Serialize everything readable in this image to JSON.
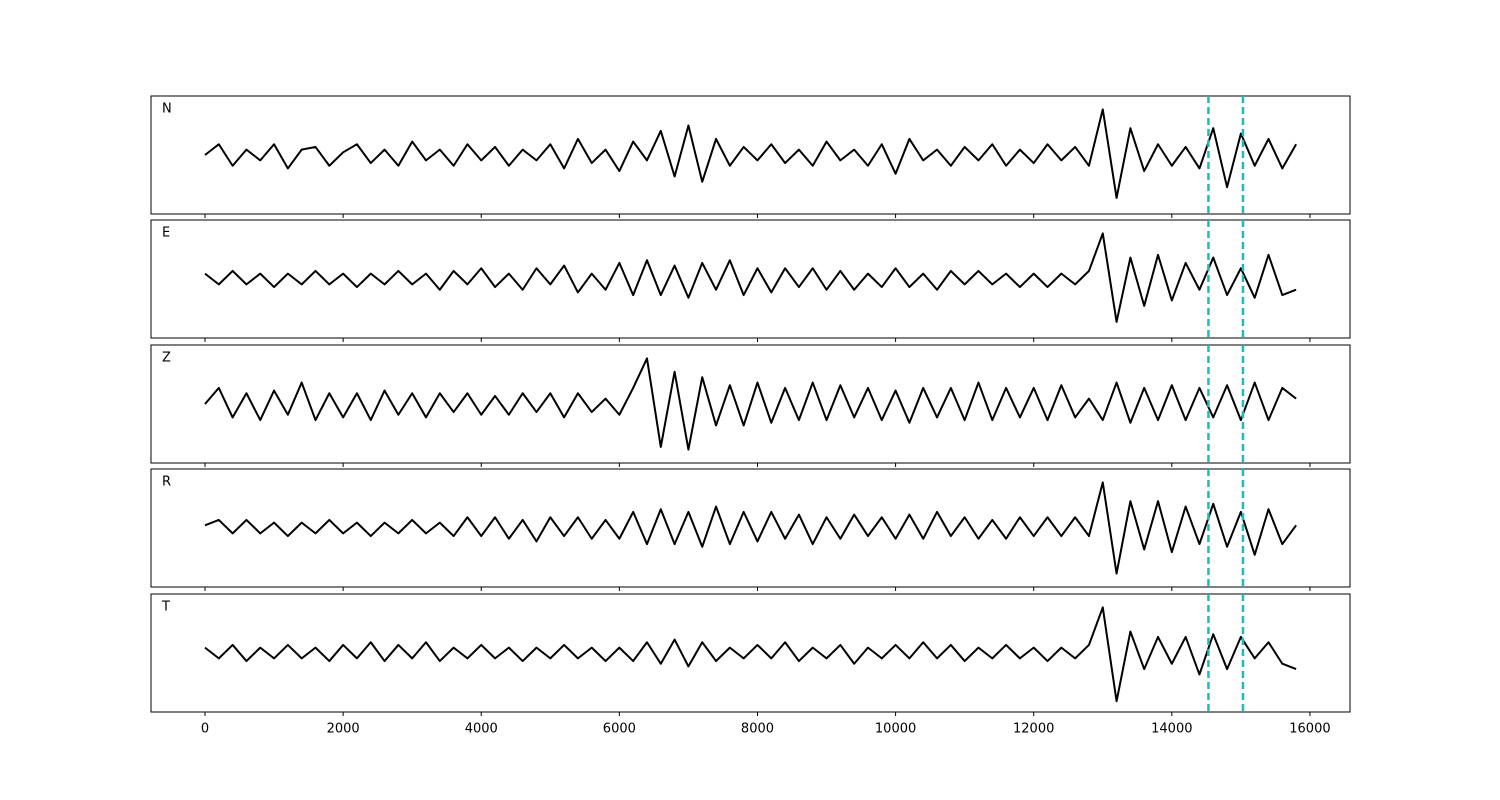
{
  "chart_data": {
    "type": "line",
    "x": [
      0,
      200,
      400,
      600,
      800,
      1000,
      1200,
      1400,
      1600,
      1800,
      2000,
      2200,
      2400,
      2600,
      2800,
      3000,
      3200,
      3400,
      3600,
      3800,
      4000,
      4200,
      4400,
      4600,
      4800,
      5000,
      5200,
      5400,
      5600,
      5800,
      6000,
      6200,
      6400,
      6600,
      6800,
      7000,
      7200,
      7400,
      7600,
      7800,
      8000,
      8200,
      8400,
      8600,
      8800,
      9000,
      9200,
      9400,
      9600,
      9800,
      10000,
      10200,
      10400,
      10600,
      10800,
      11000,
      11200,
      11400,
      11600,
      11800,
      12000,
      12200,
      12400,
      12600,
      12800,
      13000,
      13200,
      13400,
      13600,
      13800,
      14000,
      14200,
      14400,
      14600,
      14800,
      15000,
      15200,
      15400,
      15600,
      15800
    ],
    "series": [
      {
        "name": "N",
        "color": "#000000",
        "values": [
          0.0,
          0.2,
          -0.2,
          0.1,
          -0.1,
          0.2,
          -0.25,
          0.1,
          0.15,
          -0.2,
          0.05,
          0.2,
          -0.15,
          0.1,
          -0.2,
          0.25,
          -0.1,
          0.1,
          -0.2,
          0.2,
          -0.1,
          0.15,
          -0.2,
          0.1,
          -0.1,
          0.2,
          -0.25,
          0.3,
          -0.15,
          0.1,
          -0.3,
          0.25,
          -0.1,
          0.45,
          -0.4,
          0.55,
          -0.5,
          0.3,
          -0.2,
          0.15,
          -0.1,
          0.2,
          -0.15,
          0.1,
          -0.2,
          0.25,
          -0.1,
          0.1,
          -0.2,
          0.2,
          -0.35,
          0.3,
          -0.1,
          0.1,
          -0.2,
          0.15,
          -0.1,
          0.2,
          -0.2,
          0.1,
          -0.15,
          0.2,
          -0.1,
          0.15,
          -0.2,
          0.85,
          -0.8,
          0.5,
          -0.3,
          0.2,
          -0.2,
          0.15,
          -0.25,
          0.5,
          -0.6,
          0.4,
          -0.2,
          0.3,
          -0.25,
          0.2
        ]
      },
      {
        "name": "E",
        "color": "#000000",
        "values": [
          0.1,
          -0.1,
          0.15,
          -0.1,
          0.1,
          -0.15,
          0.1,
          -0.1,
          0.15,
          -0.1,
          0.1,
          -0.15,
          0.1,
          -0.1,
          0.15,
          -0.1,
          0.1,
          -0.2,
          0.15,
          -0.1,
          0.2,
          -0.15,
          0.1,
          -0.2,
          0.2,
          -0.1,
          0.25,
          -0.25,
          0.1,
          -0.2,
          0.3,
          -0.3,
          0.35,
          -0.3,
          0.25,
          -0.35,
          0.3,
          -0.2,
          0.35,
          -0.3,
          0.2,
          -0.25,
          0.2,
          -0.15,
          0.2,
          -0.2,
          0.15,
          -0.2,
          0.1,
          -0.15,
          0.2,
          -0.15,
          0.1,
          -0.2,
          0.15,
          -0.1,
          0.15,
          -0.1,
          0.1,
          -0.15,
          0.1,
          -0.15,
          0.1,
          -0.1,
          0.15,
          0.85,
          -0.8,
          0.4,
          -0.5,
          0.45,
          -0.4,
          0.3,
          -0.2,
          0.4,
          -0.3,
          0.2,
          -0.35,
          0.45,
          -0.3,
          -0.2
        ]
      },
      {
        "name": "Z",
        "color": "#000000",
        "values": [
          0.0,
          0.3,
          -0.25,
          0.2,
          -0.3,
          0.25,
          -0.2,
          0.4,
          -0.3,
          0.2,
          -0.25,
          0.2,
          -0.3,
          0.25,
          -0.2,
          0.2,
          -0.25,
          0.2,
          -0.15,
          0.2,
          -0.2,
          0.15,
          -0.2,
          0.2,
          -0.15,
          0.2,
          -0.25,
          0.2,
          -0.15,
          0.1,
          -0.2,
          0.3,
          0.85,
          -0.8,
          0.6,
          -0.85,
          0.5,
          -0.4,
          0.35,
          -0.4,
          0.4,
          -0.35,
          0.3,
          -0.3,
          0.4,
          -0.3,
          0.35,
          -0.25,
          0.3,
          -0.3,
          0.25,
          -0.35,
          0.3,
          -0.25,
          0.3,
          -0.3,
          0.4,
          -0.3,
          0.3,
          -0.25,
          0.3,
          -0.3,
          0.35,
          -0.25,
          0.1,
          -0.3,
          0.4,
          -0.35,
          0.3,
          -0.3,
          0.35,
          -0.3,
          0.3,
          -0.25,
          0.35,
          -0.3,
          0.4,
          -0.3,
          0.3,
          0.1
        ]
      },
      {
        "name": "R",
        "color": "#000000",
        "values": [
          0.05,
          0.15,
          -0.1,
          0.15,
          -0.1,
          0.1,
          -0.15,
          0.1,
          -0.1,
          0.15,
          -0.1,
          0.1,
          -0.15,
          0.1,
          -0.1,
          0.15,
          -0.1,
          0.1,
          -0.15,
          0.2,
          -0.15,
          0.2,
          -0.2,
          0.15,
          -0.25,
          0.2,
          -0.15,
          0.2,
          -0.2,
          0.15,
          -0.2,
          0.3,
          -0.3,
          0.35,
          -0.3,
          0.3,
          -0.35,
          0.4,
          -0.3,
          0.3,
          -0.25,
          0.3,
          -0.2,
          0.25,
          -0.3,
          0.2,
          -0.2,
          0.25,
          -0.15,
          0.2,
          -0.2,
          0.25,
          -0.2,
          0.3,
          -0.15,
          0.2,
          -0.2,
          0.15,
          -0.2,
          0.2,
          -0.15,
          0.2,
          -0.15,
          0.2,
          -0.15,
          0.85,
          -0.85,
          0.5,
          -0.4,
          0.5,
          -0.45,
          0.4,
          -0.3,
          0.45,
          -0.35,
          0.3,
          -0.5,
          0.35,
          -0.3,
          0.05
        ]
      },
      {
        "name": "T",
        "color": "#000000",
        "values": [
          0.1,
          -0.1,
          0.15,
          -0.15,
          0.1,
          -0.1,
          0.15,
          -0.1,
          0.1,
          -0.15,
          0.15,
          -0.1,
          0.2,
          -0.15,
          0.15,
          -0.1,
          0.2,
          -0.15,
          0.1,
          -0.1,
          0.15,
          -0.1,
          0.1,
          -0.15,
          0.1,
          -0.1,
          0.15,
          -0.1,
          0.1,
          -0.15,
          0.1,
          -0.15,
          0.2,
          -0.2,
          0.25,
          -0.25,
          0.2,
          -0.15,
          0.1,
          -0.1,
          0.15,
          -0.1,
          0.2,
          -0.15,
          0.1,
          -0.1,
          0.15,
          -0.2,
          0.1,
          -0.1,
          0.15,
          -0.1,
          0.2,
          -0.1,
          0.15,
          -0.15,
          0.1,
          -0.1,
          0.15,
          -0.1,
          0.1,
          -0.15,
          0.1,
          -0.1,
          0.15,
          0.85,
          -0.9,
          0.4,
          -0.3,
          0.3,
          -0.2,
          0.3,
          -0.4,
          0.35,
          -0.3,
          0.3,
          -0.1,
          0.2,
          -0.2,
          -0.3
        ]
      }
    ],
    "xlim": [
      -782,
      16580
    ],
    "xticks": [
      0,
      2000,
      4000,
      6000,
      8000,
      10000,
      12000,
      14000,
      16000
    ],
    "ylim": [
      -1.1,
      1.1
    ],
    "vlines": {
      "values": [
        14530,
        15030
      ],
      "color": "#17bebe"
    }
  }
}
